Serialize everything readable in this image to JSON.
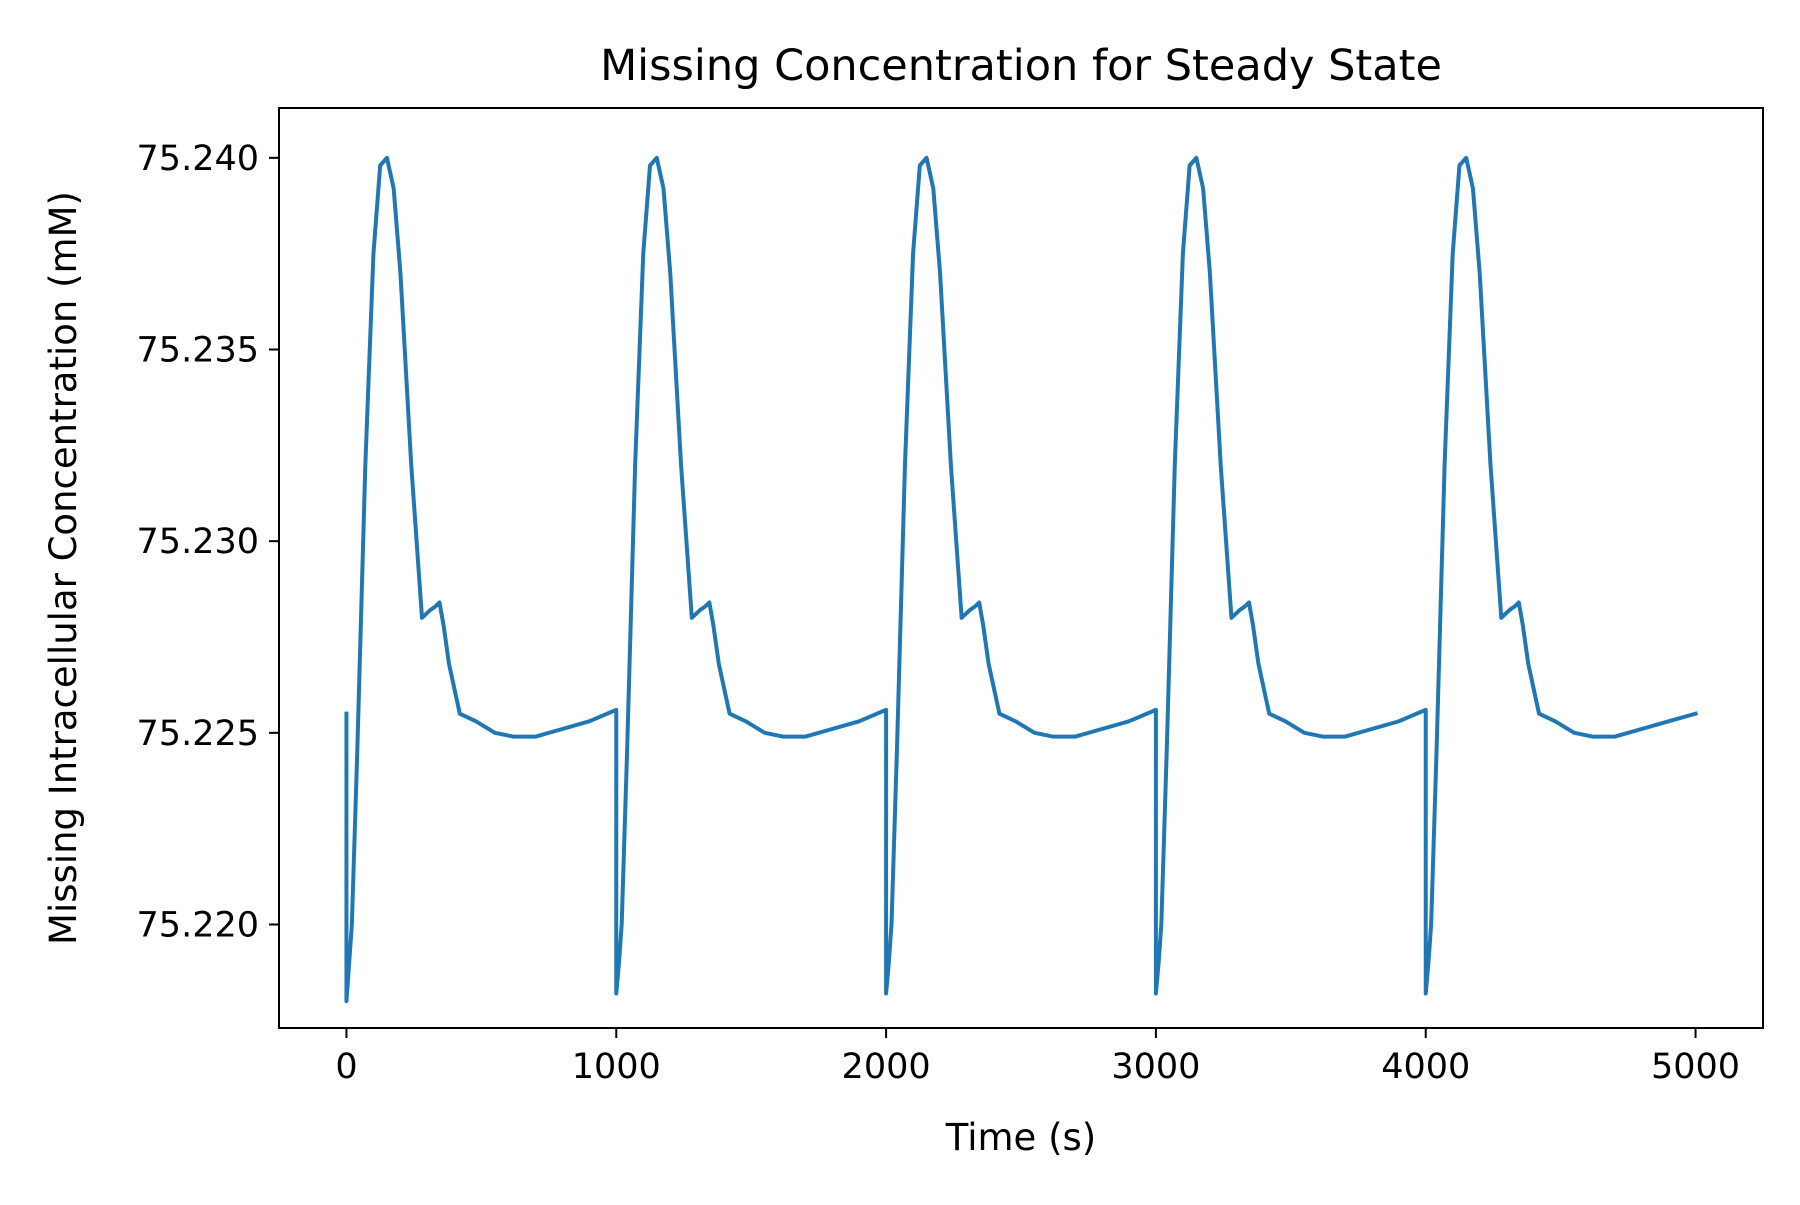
{
  "chart_data": {
    "type": "line",
    "title": "Missing Concentration for Steady State",
    "xlabel": "Time (s)",
    "ylabel": "Missing  Intracellular Concentration (mM)",
    "xlim": [
      -250,
      5250
    ],
    "ylim": [
      75.2173,
      75.2413
    ],
    "xticks": [
      0,
      1000,
      2000,
      3000,
      4000,
      5000
    ],
    "xtick_labels": [
      "0",
      "1000",
      "2000",
      "3000",
      "4000",
      "5000"
    ],
    "yticks": [
      75.22,
      75.225,
      75.23,
      75.235,
      75.24
    ],
    "ytick_labels": [
      "75.220",
      "75.225",
      "75.230",
      "75.235",
      "75.240"
    ],
    "grid": false,
    "legend": "none",
    "series": [
      {
        "color": "#1f77b4",
        "x": [
          0,
          0,
          10,
          20,
          40,
          70,
          100,
          125,
          150,
          175,
          200,
          240,
          280,
          310,
          330,
          345,
          360,
          380,
          420,
          480,
          550,
          620,
          700,
          800,
          900,
          1000,
          1000,
          1000,
          1010,
          1020,
          1040,
          1070,
          1100,
          1125,
          1150,
          1175,
          1200,
          1240,
          1280,
          1310,
          1330,
          1345,
          1360,
          1380,
          1420,
          1480,
          1550,
          1620,
          1700,
          1800,
          1900,
          2000,
          2000,
          2000,
          2010,
          2020,
          2040,
          2070,
          2100,
          2125,
          2150,
          2175,
          2200,
          2240,
          2280,
          2310,
          2330,
          2345,
          2360,
          2380,
          2420,
          2480,
          2550,
          2620,
          2700,
          2800,
          2900,
          3000,
          3000,
          3000,
          3010,
          3020,
          3040,
          3070,
          3100,
          3125,
          3150,
          3175,
          3200,
          3240,
          3280,
          3310,
          3330,
          3345,
          3360,
          3380,
          3420,
          3480,
          3550,
          3620,
          3700,
          3800,
          3900,
          4000,
          4000,
          4000,
          4010,
          4020,
          4040,
          4070,
          4100,
          4125,
          4150,
          4175,
          4200,
          4240,
          4280,
          4310,
          4330,
          4345,
          4360,
          4380,
          4420,
          4480,
          4550,
          4620,
          4700,
          4800,
          4900,
          5000
        ],
        "y": [
          75.2255,
          75.218,
          75.219,
          75.22,
          75.2245,
          75.232,
          75.2375,
          75.2398,
          75.24,
          75.2392,
          75.237,
          75.232,
          75.228,
          75.2282,
          75.2283,
          75.2284,
          75.2278,
          75.2268,
          75.2255,
          75.2253,
          75.225,
          75.2249,
          75.2249,
          75.2251,
          75.2253,
          75.2256,
          75.2256,
          75.2182,
          75.219,
          75.22,
          75.2245,
          75.232,
          75.2375,
          75.2398,
          75.24,
          75.2392,
          75.237,
          75.232,
          75.228,
          75.2282,
          75.2283,
          75.2284,
          75.2278,
          75.2268,
          75.2255,
          75.2253,
          75.225,
          75.2249,
          75.2249,
          75.2251,
          75.2253,
          75.2256,
          75.2256,
          75.2182,
          75.219,
          75.22,
          75.2245,
          75.232,
          75.2375,
          75.2398,
          75.24,
          75.2392,
          75.237,
          75.232,
          75.228,
          75.2282,
          75.2283,
          75.2284,
          75.2278,
          75.2268,
          75.2255,
          75.2253,
          75.225,
          75.2249,
          75.2249,
          75.2251,
          75.2253,
          75.2256,
          75.2256,
          75.2182,
          75.219,
          75.22,
          75.2245,
          75.232,
          75.2375,
          75.2398,
          75.24,
          75.2392,
          75.237,
          75.232,
          75.228,
          75.2282,
          75.2283,
          75.2284,
          75.2278,
          75.2268,
          75.2255,
          75.2253,
          75.225,
          75.2249,
          75.2249,
          75.2251,
          75.2253,
          75.2256,
          75.2256,
          75.2182,
          75.219,
          75.22,
          75.2245,
          75.232,
          75.2375,
          75.2398,
          75.24,
          75.2392,
          75.237,
          75.232,
          75.228,
          75.2282,
          75.2283,
          75.2284,
          75.2278,
          75.2268,
          75.2255,
          75.2253,
          75.225,
          75.2249,
          75.2249,
          75.2251,
          75.2253,
          75.2255
        ]
      }
    ]
  }
}
